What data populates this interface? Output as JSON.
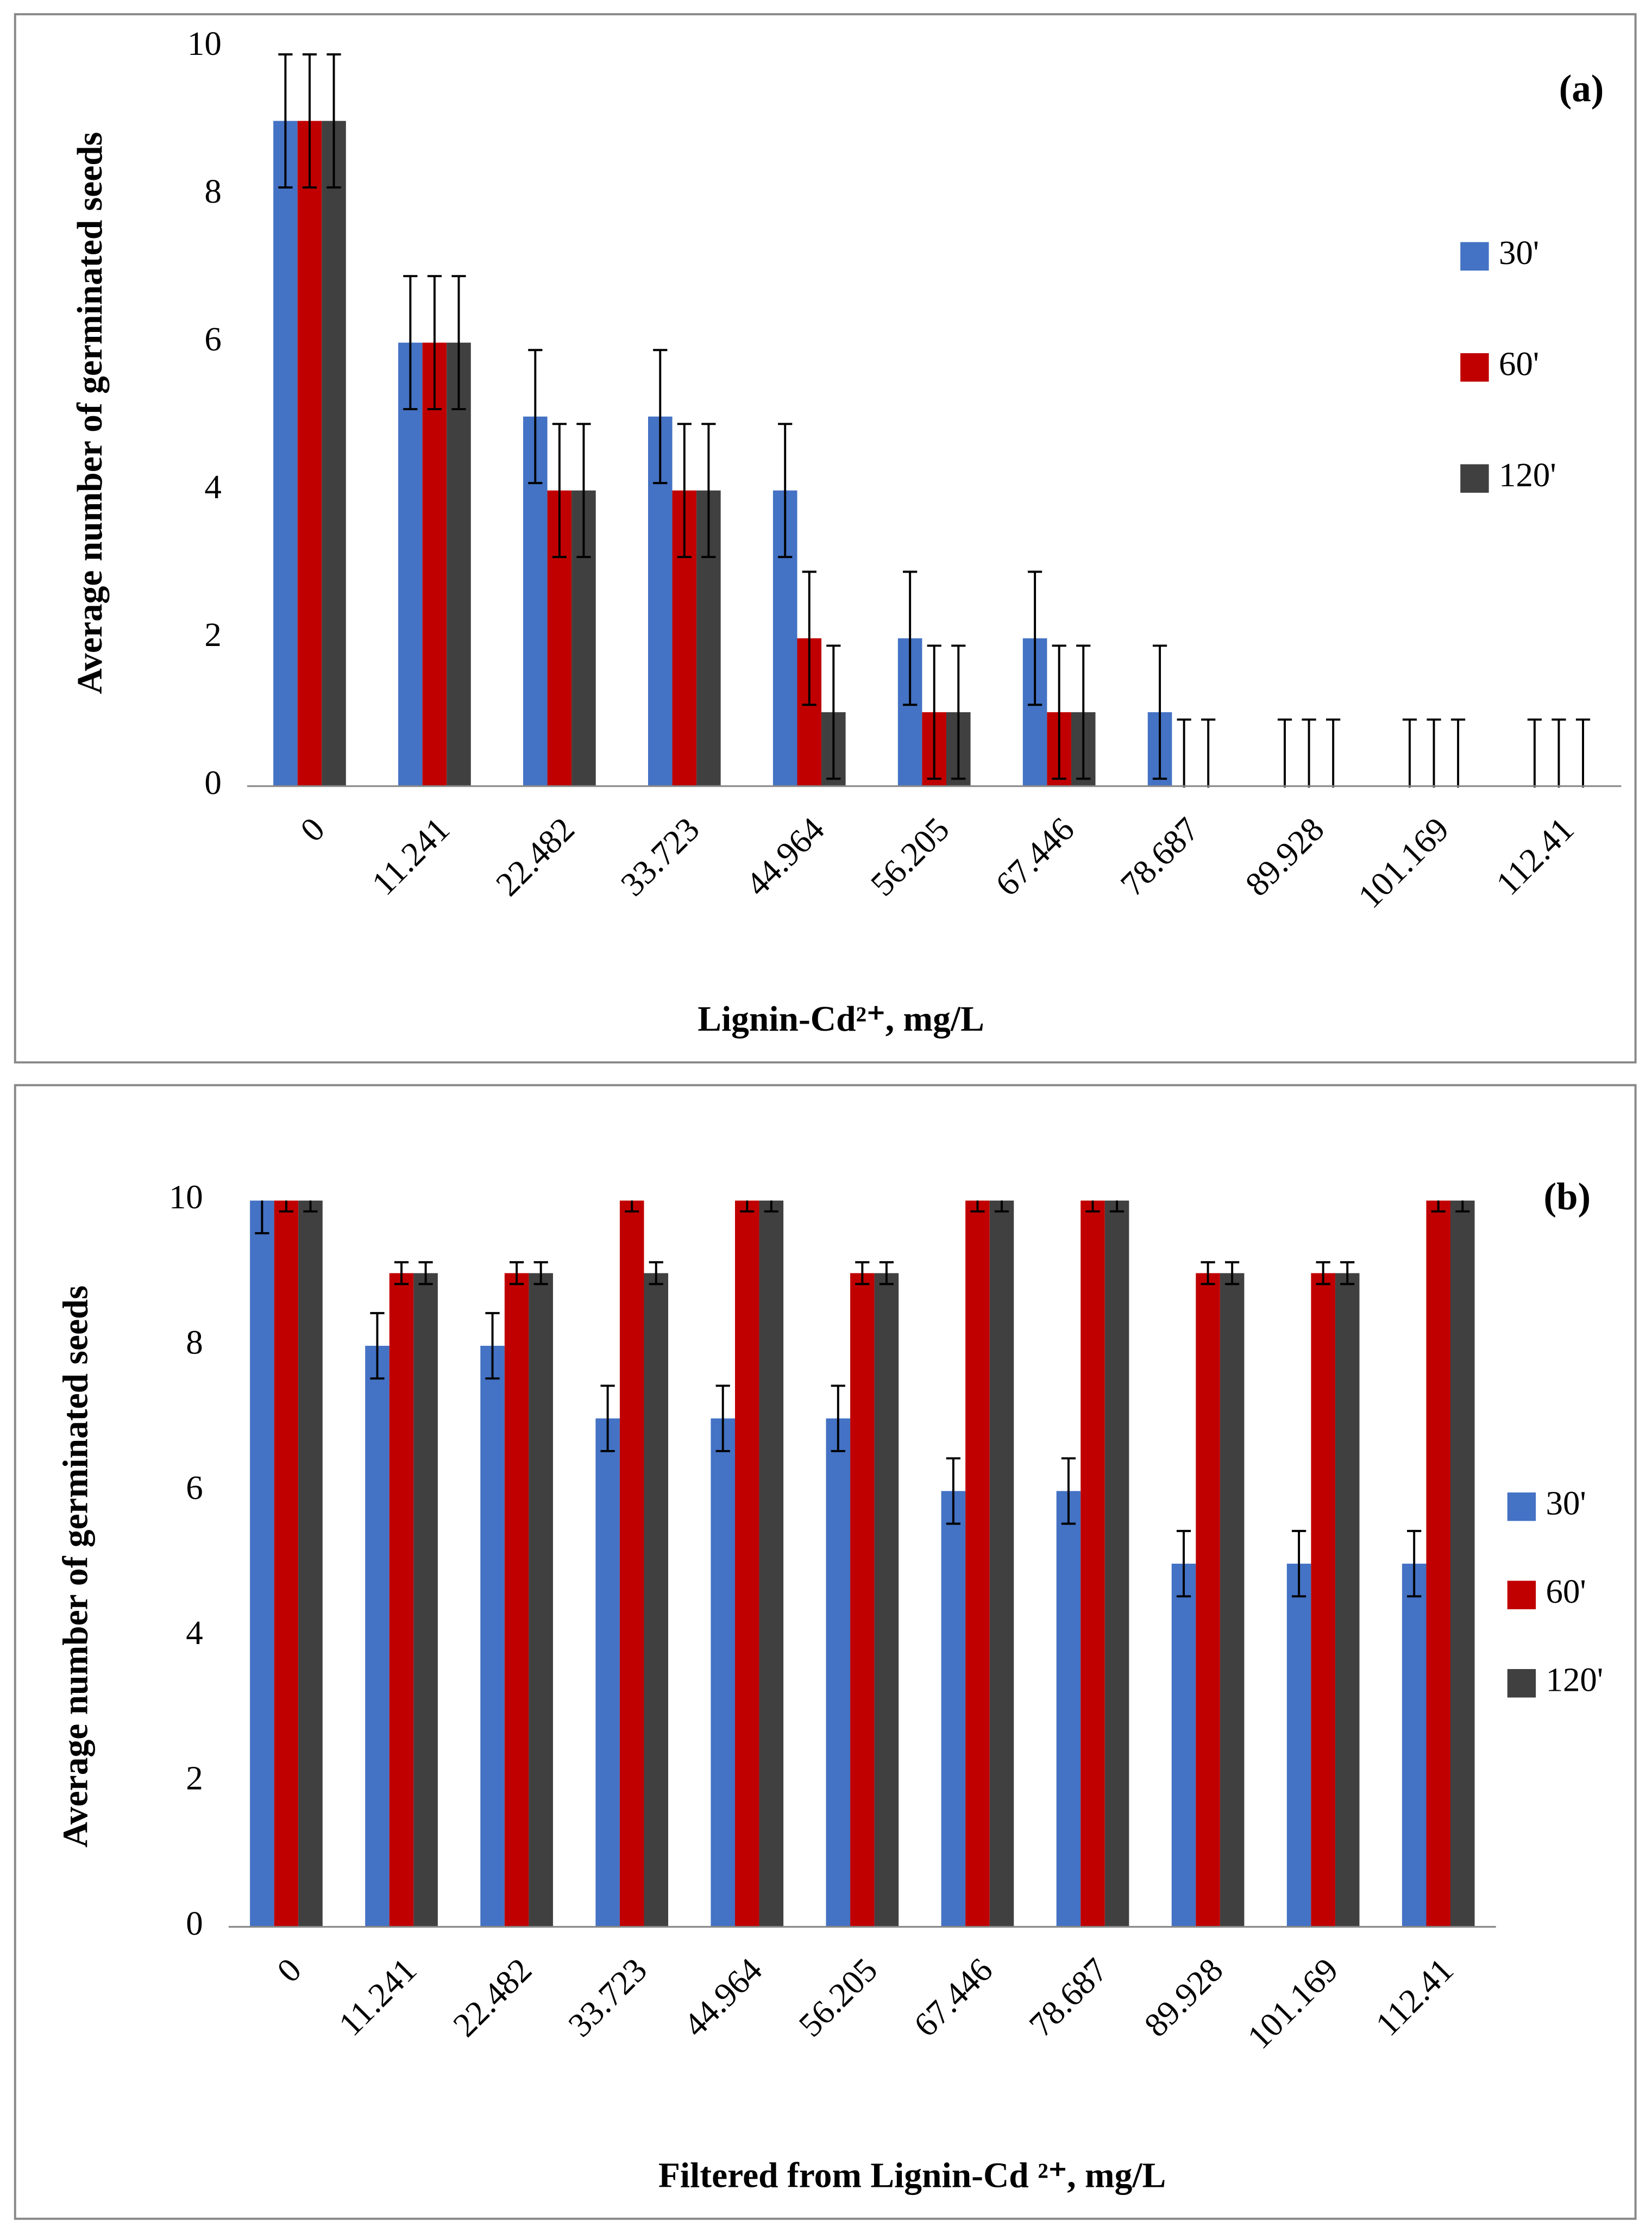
{
  "chart_data": [
    {
      "type": "bar",
      "annotation": "(a)",
      "xlabel": "Lignin-Cd²⁺, mg/L",
      "ylabel": "Average number of germinated seeds",
      "categories": [
        "0",
        "11.241",
        "22.482",
        "33.723",
        "44.964",
        "56.205",
        "67.446",
        "78.687",
        "89.928",
        "101.169",
        "112.41"
      ],
      "ylim": [
        0,
        10
      ],
      "yticks": [
        0,
        2,
        4,
        6,
        8,
        10
      ],
      "grid": false,
      "legend": "right",
      "series": [
        {
          "name": "30'",
          "color": "#4472c4",
          "values": [
            9,
            6,
            5,
            5,
            4,
            2,
            2,
            1,
            0,
            0,
            0
          ],
          "errors": [
            0.9,
            0.9,
            0.9,
            0.9,
            0.9,
            0.9,
            0.9,
            0.9,
            0.9,
            0.9,
            0.9
          ]
        },
        {
          "name": "60'",
          "color": "#c00000",
          "values": [
            9,
            6,
            4,
            4,
            2,
            1,
            1,
            0,
            0,
            0,
            0
          ],
          "errors": [
            0.9,
            0.9,
            0.9,
            0.9,
            0.9,
            0.9,
            0.9,
            0.9,
            0.9,
            0.9,
            0.9
          ]
        },
        {
          "name": "120'",
          "color": "#404040",
          "values": [
            9,
            6,
            4,
            4,
            1,
            1,
            1,
            0,
            0,
            0,
            0
          ],
          "errors": [
            0.9,
            0.9,
            0.9,
            0.9,
            0.9,
            0.9,
            0.9,
            0.9,
            0.9,
            0.9,
            0.9
          ]
        }
      ]
    },
    {
      "type": "bar",
      "annotation": "(b)",
      "xlabel": "Filtered from Lignin-Cd ²⁺, mg/L",
      "ylabel": "Average number of germinated seeds",
      "categories": [
        "0",
        "11.241",
        "22.482",
        "33.723",
        "44.964",
        "56.205",
        "67.446",
        "78.687",
        "89.928",
        "101.169",
        "112.41"
      ],
      "ylim": [
        0,
        10
      ],
      "yticks": [
        0,
        2,
        4,
        6,
        8,
        10
      ],
      "grid": false,
      "legend": "right",
      "series": [
        {
          "name": "30'",
          "color": "#4472c4",
          "values": [
            10,
            8,
            8,
            7,
            7,
            7,
            6,
            6,
            5,
            5,
            5
          ],
          "errors": [
            0.45,
            0.45,
            0.45,
            0.45,
            0.45,
            0.45,
            0.45,
            0.45,
            0.45,
            0.45,
            0.45
          ]
        },
        {
          "name": "60'",
          "color": "#c00000",
          "values": [
            10,
            9,
            9,
            10,
            10,
            9,
            10,
            10,
            9,
            9,
            10
          ],
          "errors": [
            0.15,
            0.15,
            0.15,
            0.15,
            0.15,
            0.15,
            0.15,
            0.15,
            0.15,
            0.15,
            0.15
          ]
        },
        {
          "name": "120'",
          "color": "#404040",
          "values": [
            10,
            9,
            9,
            9,
            10,
            9,
            10,
            10,
            9,
            9,
            10
          ],
          "errors": [
            0.15,
            0.15,
            0.15,
            0.15,
            0.15,
            0.15,
            0.15,
            0.15,
            0.15,
            0.15,
            0.15
          ]
        }
      ]
    }
  ]
}
